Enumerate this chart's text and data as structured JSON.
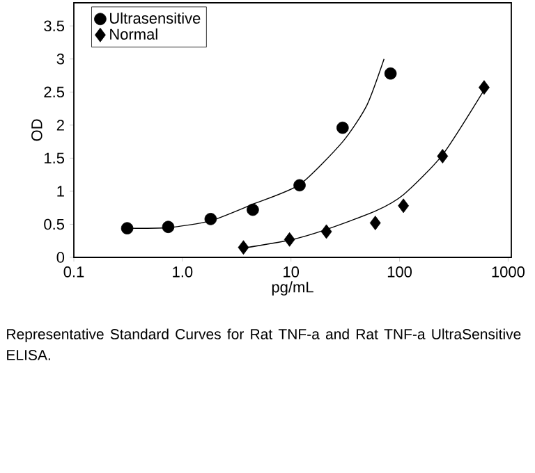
{
  "chart_data": {
    "type": "scatter",
    "xlabel": "pg/mL",
    "ylabel": "OD",
    "log": "x",
    "legend": "top left",
    "xlim": [
      0.1,
      1070
    ],
    "ylim": [
      0,
      3.85
    ],
    "xticks": [
      0.1,
      {
        "value": 1,
        "label": "1.0"
      },
      10,
      100,
      1000
    ],
    "yticks": [
      0,
      0.5,
      1,
      1.5,
      2,
      2.5,
      3,
      3.5
    ],
    "annotations": [
      "Representative Standard Curves for Rat TNF-a and Rat TNF-a UltraSensitive ELISA."
    ],
    "series": [
      {
        "name": "Ultrasensitive",
        "marker": "circle",
        "color": "#000000",
        "x": [
          0.31,
          0.74,
          1.82,
          4.45,
          12.0,
          29.9,
          82.6
        ],
        "values": [
          0.44,
          0.46,
          0.58,
          0.72,
          1.09,
          1.96,
          2.78
        ]
      },
      {
        "name": "Normal",
        "marker": "diamond",
        "color": "#000000",
        "x": [
          3.65,
          9.7,
          21.2,
          59.8,
          108.6,
          249,
          601
        ],
        "values": [
          0.15,
          0.27,
          0.39,
          0.52,
          0.78,
          1.53,
          2.57
        ]
      },
      {
        "type": "line",
        "color": "#000000",
        "x": [
          0.31,
          0.74,
          1.8,
          4.4,
          12,
          30,
          50,
          72
        ],
        "values": [
          0.44,
          0.45,
          0.55,
          0.8,
          1.1,
          1.75,
          2.3,
          3.0
        ]
      },
      {
        "type": "line",
        "color": "#000000",
        "x": [
          3.65,
          9.7,
          21,
          60,
          109,
          249,
          601
        ],
        "values": [
          0.14,
          0.26,
          0.42,
          0.7,
          0.95,
          1.55,
          2.53
        ]
      }
    ]
  }
}
